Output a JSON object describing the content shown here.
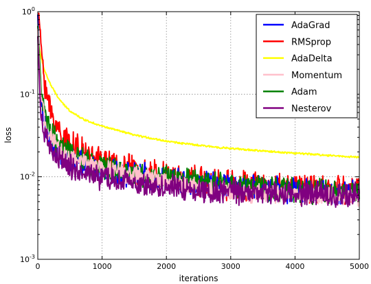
{
  "chart_data": {
    "type": "line",
    "xlabel": "iterations",
    "ylabel": "loss",
    "yscale": "log",
    "xlim": [
      0,
      5000
    ],
    "ylim": [
      0.001,
      1
    ],
    "xticks": [
      0,
      1000,
      2000,
      3000,
      4000,
      5000
    ],
    "xtick_labels": [
      "0",
      "1000",
      "2000",
      "3000",
      "4000",
      "5000"
    ],
    "yticks": [
      0.001,
      0.01,
      0.1,
      1
    ],
    "ytick_labels": [
      {
        "base": "10",
        "exp": "-3"
      },
      {
        "base": "10",
        "exp": "-2"
      },
      {
        "base": "10",
        "exp": "-1"
      },
      {
        "base": "10",
        "exp": "0"
      }
    ],
    "grid": true,
    "legend_position": "top-right",
    "series": [
      {
        "name": "AdaGrad",
        "color": "#0000ff",
        "x": [
          0,
          25,
          50,
          100,
          150,
          200,
          300,
          400,
          500,
          700,
          1000,
          1500,
          2000,
          2500,
          3000,
          3500,
          4000,
          4500,
          5000
        ],
        "y": [
          0.9,
          0.22,
          0.08,
          0.045,
          0.032,
          0.027,
          0.021,
          0.018,
          0.016,
          0.014,
          0.012,
          0.0105,
          0.0093,
          0.0085,
          0.0076,
          0.0072,
          0.0068,
          0.0066,
          0.0064
        ],
        "noise": 0.13
      },
      {
        "name": "RMSprop",
        "color": "#ff0000",
        "x": [
          0,
          25,
          50,
          100,
          150,
          200,
          300,
          400,
          500,
          700,
          1000,
          1500,
          2000,
          2500,
          3000,
          3500,
          4000,
          4500,
          5000
        ],
        "y": [
          0.95,
          0.8,
          0.4,
          0.16,
          0.09,
          0.06,
          0.04,
          0.03,
          0.025,
          0.019,
          0.015,
          0.012,
          0.01,
          0.0088,
          0.008,
          0.0075,
          0.0072,
          0.007,
          0.0068
        ],
        "noise": 0.16
      },
      {
        "name": "AdaDelta",
        "color": "#ffff00",
        "x": [
          0,
          25,
          50,
          100,
          150,
          200,
          300,
          400,
          500,
          700,
          1000,
          1500,
          2000,
          2500,
          3000,
          3500,
          4000,
          4500,
          5000
        ],
        "y": [
          0.5,
          0.35,
          0.28,
          0.2,
          0.16,
          0.13,
          0.095,
          0.075,
          0.063,
          0.05,
          0.041,
          0.032,
          0.027,
          0.024,
          0.022,
          0.0205,
          0.0193,
          0.0182,
          0.0172
        ],
        "noise": 0.01
      },
      {
        "name": "Momentum",
        "color": "#ffc0cb",
        "x": [
          0,
          25,
          50,
          100,
          150,
          200,
          300,
          400,
          500,
          700,
          1000,
          1500,
          2000,
          2500,
          3000,
          3500,
          4000,
          4500,
          5000
        ],
        "y": [
          0.6,
          0.2,
          0.09,
          0.05,
          0.036,
          0.029,
          0.022,
          0.019,
          0.017,
          0.0148,
          0.0128,
          0.0105,
          0.0088,
          0.0075,
          0.0066,
          0.0062,
          0.006,
          0.0058,
          0.0057
        ],
        "noise": 0.1
      },
      {
        "name": "Adam",
        "color": "#008000",
        "x": [
          0,
          25,
          50,
          100,
          150,
          200,
          300,
          400,
          500,
          700,
          1000,
          1500,
          2000,
          2500,
          3000,
          3500,
          4000,
          4500,
          5000
        ],
        "y": [
          0.7,
          0.3,
          0.12,
          0.06,
          0.042,
          0.034,
          0.026,
          0.022,
          0.019,
          0.0162,
          0.0135,
          0.011,
          0.0096,
          0.0087,
          0.0079,
          0.0073,
          0.0069,
          0.0066,
          0.0064
        ],
        "noise": 0.13
      },
      {
        "name": "Nesterov",
        "color": "#800080",
        "x": [
          0,
          25,
          50,
          100,
          150,
          200,
          300,
          400,
          500,
          700,
          1000,
          1500,
          2000,
          2500,
          3000,
          3500,
          4000,
          4500,
          5000
        ],
        "y": [
          0.5,
          0.15,
          0.055,
          0.032,
          0.025,
          0.021,
          0.017,
          0.0148,
          0.0132,
          0.0112,
          0.0095,
          0.0082,
          0.0074,
          0.0069,
          0.0066,
          0.0064,
          0.0063,
          0.0062,
          0.0061
        ],
        "noise": 0.13
      }
    ]
  }
}
